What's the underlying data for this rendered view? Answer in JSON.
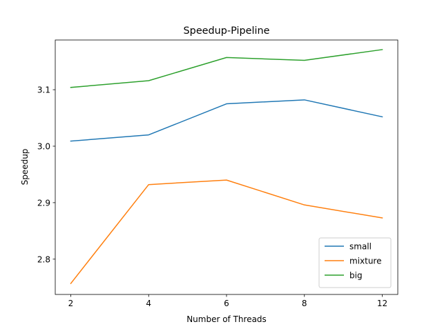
{
  "chart_data": {
    "type": "line",
    "title": "Speedup-Pipeline",
    "xlabel": "Number of Threads",
    "ylabel": "Speedup",
    "categories": [
      "2",
      "4",
      "6",
      "8",
      "12"
    ],
    "yticks": [
      "2.8",
      "2.9",
      "3.0",
      "3.1"
    ],
    "ylim": [
      2.7375,
      3.188
    ],
    "grid": false,
    "legend_position": "lower right",
    "series": [
      {
        "name": "small",
        "color": "#1f77b4",
        "values": [
          3.009,
          3.02,
          3.075,
          3.082,
          3.052
        ]
      },
      {
        "name": "mixture",
        "color": "#ff7f0e",
        "values": [
          2.757,
          2.932,
          2.94,
          2.896,
          2.873
        ]
      },
      {
        "name": "big",
        "color": "#2ca02c",
        "values": [
          3.104,
          3.116,
          3.157,
          3.152,
          3.171
        ]
      }
    ]
  }
}
